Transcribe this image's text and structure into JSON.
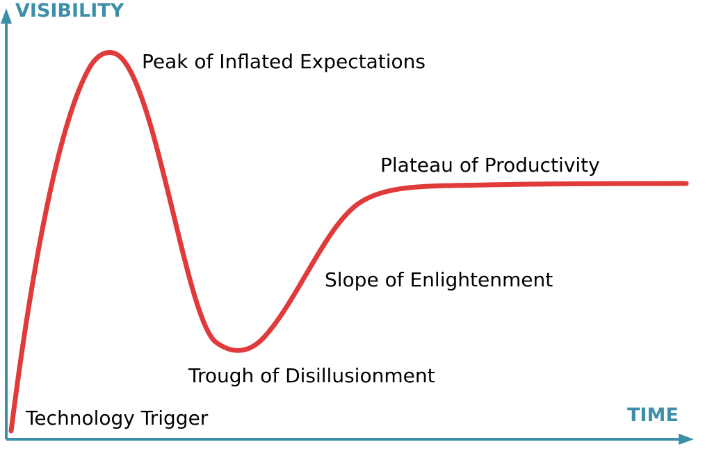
{
  "axes": {
    "y_title": "VISIBILITY",
    "x_title": "TIME",
    "axis_color": "#3d8ea8"
  },
  "curve": {
    "color": "#e03a3a"
  },
  "phases": {
    "technology_trigger": "Technology Trigger",
    "peak": "Peak of Inflated Expectations",
    "trough": "Trough of Disillusionment",
    "slope": "Slope of Enlightenment",
    "plateau": "Plateau of Productivity"
  }
}
